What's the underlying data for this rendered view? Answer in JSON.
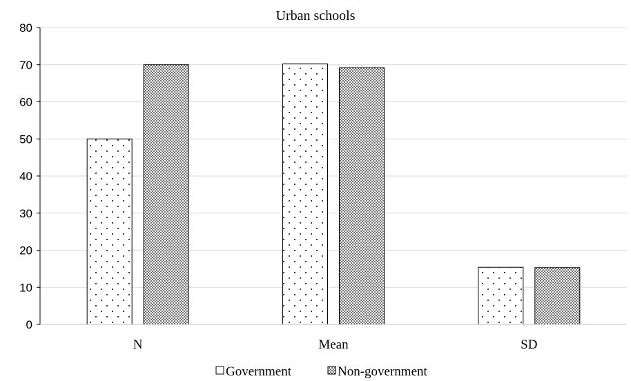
{
  "chart_data": {
    "type": "bar",
    "title": "Urban schools",
    "categories": [
      "N",
      "Mean",
      "SD"
    ],
    "series": [
      {
        "name": "Government",
        "values": [
          50,
          70.2,
          15.4
        ]
      },
      {
        "name": "Non-government",
        "values": [
          70,
          69.2,
          15.3
        ]
      }
    ],
    "ylim": [
      0,
      80
    ],
    "yticks": [
      0,
      10,
      20,
      30,
      40,
      50,
      60,
      70,
      80
    ],
    "grid": true,
    "legend": "bottom"
  }
}
